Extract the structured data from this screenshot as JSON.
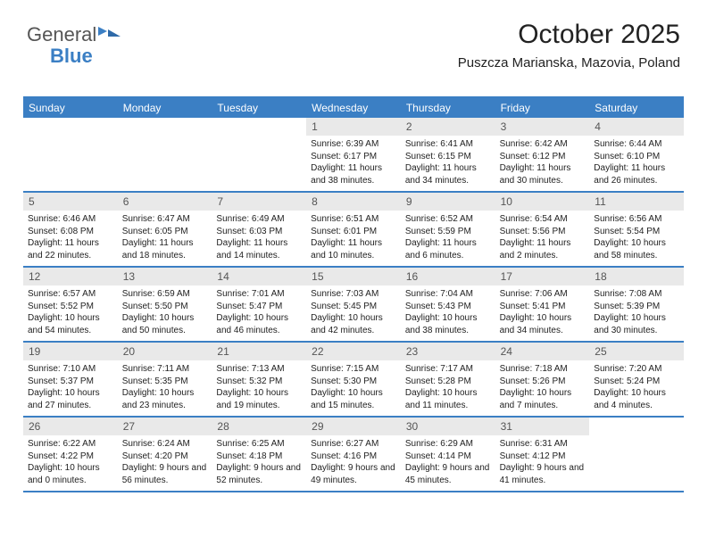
{
  "logo": {
    "part1": "General",
    "part2": "Blue"
  },
  "header": {
    "month_title": "October 2025",
    "location": "Puszcza Marianska, Mazovia, Poland"
  },
  "colors": {
    "accent": "#3b7fc4",
    "date_band": "#e9e9e9",
    "text": "#222222",
    "logo_gray": "#555555"
  },
  "day_names": [
    "Sunday",
    "Monday",
    "Tuesday",
    "Wednesday",
    "Thursday",
    "Friday",
    "Saturday"
  ],
  "weeks": [
    [
      null,
      null,
      null,
      {
        "date": "1",
        "sunrise": "6:39 AM",
        "sunset": "6:17 PM",
        "daylight": "11 hours and 38 minutes."
      },
      {
        "date": "2",
        "sunrise": "6:41 AM",
        "sunset": "6:15 PM",
        "daylight": "11 hours and 34 minutes."
      },
      {
        "date": "3",
        "sunrise": "6:42 AM",
        "sunset": "6:12 PM",
        "daylight": "11 hours and 30 minutes."
      },
      {
        "date": "4",
        "sunrise": "6:44 AM",
        "sunset": "6:10 PM",
        "daylight": "11 hours and 26 minutes."
      }
    ],
    [
      {
        "date": "5",
        "sunrise": "6:46 AM",
        "sunset": "6:08 PM",
        "daylight": "11 hours and 22 minutes."
      },
      {
        "date": "6",
        "sunrise": "6:47 AM",
        "sunset": "6:05 PM",
        "daylight": "11 hours and 18 minutes."
      },
      {
        "date": "7",
        "sunrise": "6:49 AM",
        "sunset": "6:03 PM",
        "daylight": "11 hours and 14 minutes."
      },
      {
        "date": "8",
        "sunrise": "6:51 AM",
        "sunset": "6:01 PM",
        "daylight": "11 hours and 10 minutes."
      },
      {
        "date": "9",
        "sunrise": "6:52 AM",
        "sunset": "5:59 PM",
        "daylight": "11 hours and 6 minutes."
      },
      {
        "date": "10",
        "sunrise": "6:54 AM",
        "sunset": "5:56 PM",
        "daylight": "11 hours and 2 minutes."
      },
      {
        "date": "11",
        "sunrise": "6:56 AM",
        "sunset": "5:54 PM",
        "daylight": "10 hours and 58 minutes."
      }
    ],
    [
      {
        "date": "12",
        "sunrise": "6:57 AM",
        "sunset": "5:52 PM",
        "daylight": "10 hours and 54 minutes."
      },
      {
        "date": "13",
        "sunrise": "6:59 AM",
        "sunset": "5:50 PM",
        "daylight": "10 hours and 50 minutes."
      },
      {
        "date": "14",
        "sunrise": "7:01 AM",
        "sunset": "5:47 PM",
        "daylight": "10 hours and 46 minutes."
      },
      {
        "date": "15",
        "sunrise": "7:03 AM",
        "sunset": "5:45 PM",
        "daylight": "10 hours and 42 minutes."
      },
      {
        "date": "16",
        "sunrise": "7:04 AM",
        "sunset": "5:43 PM",
        "daylight": "10 hours and 38 minutes."
      },
      {
        "date": "17",
        "sunrise": "7:06 AM",
        "sunset": "5:41 PM",
        "daylight": "10 hours and 34 minutes."
      },
      {
        "date": "18",
        "sunrise": "7:08 AM",
        "sunset": "5:39 PM",
        "daylight": "10 hours and 30 minutes."
      }
    ],
    [
      {
        "date": "19",
        "sunrise": "7:10 AM",
        "sunset": "5:37 PM",
        "daylight": "10 hours and 27 minutes."
      },
      {
        "date": "20",
        "sunrise": "7:11 AM",
        "sunset": "5:35 PM",
        "daylight": "10 hours and 23 minutes."
      },
      {
        "date": "21",
        "sunrise": "7:13 AM",
        "sunset": "5:32 PM",
        "daylight": "10 hours and 19 minutes."
      },
      {
        "date": "22",
        "sunrise": "7:15 AM",
        "sunset": "5:30 PM",
        "daylight": "10 hours and 15 minutes."
      },
      {
        "date": "23",
        "sunrise": "7:17 AM",
        "sunset": "5:28 PM",
        "daylight": "10 hours and 11 minutes."
      },
      {
        "date": "24",
        "sunrise": "7:18 AM",
        "sunset": "5:26 PM",
        "daylight": "10 hours and 7 minutes."
      },
      {
        "date": "25",
        "sunrise": "7:20 AM",
        "sunset": "5:24 PM",
        "daylight": "10 hours and 4 minutes."
      }
    ],
    [
      {
        "date": "26",
        "sunrise": "6:22 AM",
        "sunset": "4:22 PM",
        "daylight": "10 hours and 0 minutes."
      },
      {
        "date": "27",
        "sunrise": "6:24 AM",
        "sunset": "4:20 PM",
        "daylight": "9 hours and 56 minutes."
      },
      {
        "date": "28",
        "sunrise": "6:25 AM",
        "sunset": "4:18 PM",
        "daylight": "9 hours and 52 minutes."
      },
      {
        "date": "29",
        "sunrise": "6:27 AM",
        "sunset": "4:16 PM",
        "daylight": "9 hours and 49 minutes."
      },
      {
        "date": "30",
        "sunrise": "6:29 AM",
        "sunset": "4:14 PM",
        "daylight": "9 hours and 45 minutes."
      },
      {
        "date": "31",
        "sunrise": "6:31 AM",
        "sunset": "4:12 PM",
        "daylight": "9 hours and 41 minutes."
      },
      null
    ]
  ],
  "labels": {
    "sunrise": "Sunrise:",
    "sunset": "Sunset:",
    "daylight": "Daylight:"
  }
}
